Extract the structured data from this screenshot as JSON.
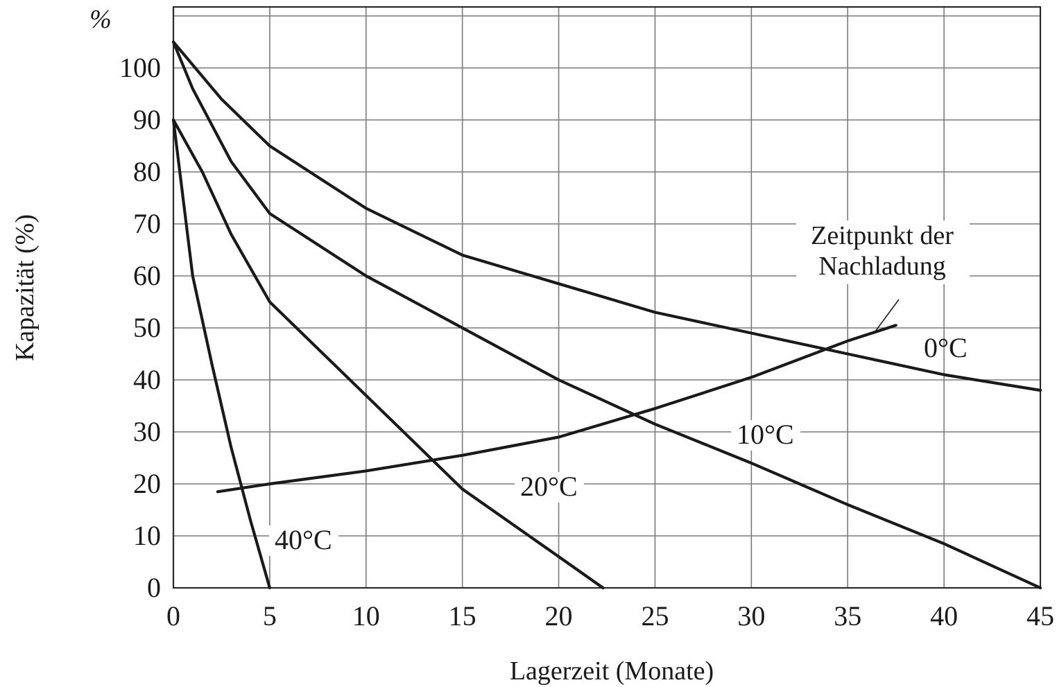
{
  "chart_data": {
    "type": "line",
    "title": "",
    "xlabel": "Lagerzeit (Monate)",
    "ylabel": "Kapazität (%)",
    "y_unit": "%",
    "xlim": [
      0,
      45
    ],
    "ylim": [
      0,
      110
    ],
    "x_ticks": [
      "0",
      "5",
      "10",
      "15",
      "20",
      "25",
      "30",
      "35",
      "40",
      "45"
    ],
    "y_ticks": [
      "0",
      "10",
      "20",
      "30",
      "40",
      "50",
      "60",
      "70",
      "80",
      "90",
      "100"
    ],
    "grid": true,
    "series": [
      {
        "name": "0°C",
        "x": [
          0,
          2.5,
          5,
          7.5,
          10,
          15,
          20,
          25,
          30,
          35,
          40,
          45
        ],
        "y": [
          105,
          94,
          85,
          79,
          73,
          64,
          58.5,
          53,
          49,
          45,
          41,
          38
        ]
      },
      {
        "name": "10°C",
        "x": [
          0,
          1,
          3,
          5,
          10,
          15,
          20,
          25,
          30,
          35,
          40,
          45
        ],
        "y": [
          105,
          96,
          82,
          72,
          60,
          50,
          40,
          31.5,
          24,
          16,
          8.5,
          0
        ]
      },
      {
        "name": "20°C",
        "x": [
          0,
          1.5,
          3,
          5,
          10,
          15,
          20,
          22.3
        ],
        "y": [
          90,
          80,
          68,
          55,
          37,
          19,
          6,
          0
        ]
      },
      {
        "name": "40°C",
        "x": [
          0,
          0.5,
          1,
          2,
          3,
          4,
          5
        ],
        "y": [
          90,
          75,
          60,
          43,
          27,
          13,
          0
        ]
      },
      {
        "name": "Zeitpunkt der Nachladung",
        "x": [
          2.3,
          5,
          10,
          15,
          20,
          25,
          30,
          35,
          37.5
        ],
        "y": [
          18.5,
          20,
          22.5,
          25.5,
          29,
          34.5,
          40.5,
          47.5,
          50.5
        ]
      }
    ],
    "annotations": {
      "recharge_line1": "Zeitpunkt der",
      "recharge_line2": "Nachladung",
      "s0": "0°C",
      "s10": "10°C",
      "s20": "20°C",
      "s40": "40°C"
    }
  }
}
